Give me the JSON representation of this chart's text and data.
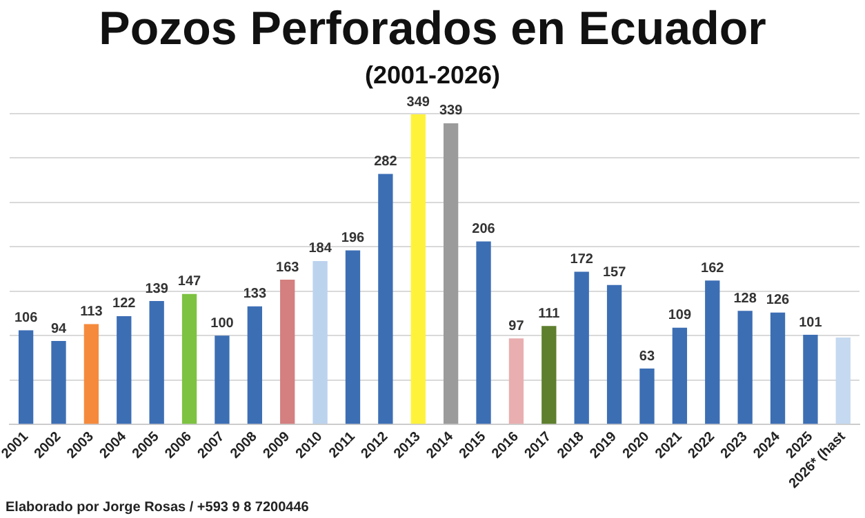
{
  "chart_data": {
    "type": "bar",
    "title": "Pozos Perforados en Ecuador",
    "subtitle": "(2001-2026)",
    "categories": [
      "2001",
      "2002",
      "2003",
      "2004",
      "2005",
      "2006",
      "2007",
      "2008",
      "2009",
      "2010",
      "2011",
      "2012",
      "2013",
      "2014",
      "2015",
      "2016",
      "2017",
      "2018",
      "2019",
      "2020",
      "2021",
      "2022",
      "2023",
      "2024",
      "2025",
      "2026* (hast"
    ],
    "values": [
      106,
      94,
      113,
      122,
      139,
      147,
      100,
      133,
      163,
      184,
      196,
      282,
      349,
      339,
      206,
      97,
      111,
      172,
      157,
      63,
      109,
      162,
      128,
      126,
      101,
      98
    ],
    "colors": [
      "#3c6eb4",
      "#3c6eb4",
      "#f58a3c",
      "#3c6eb4",
      "#3c6eb4",
      "#7dc241",
      "#3c6eb4",
      "#3c6eb4",
      "#d47f80",
      "#bcd3ee",
      "#3c6eb4",
      "#3c6eb4",
      "#fff23a",
      "#9b9b9b",
      "#3c6eb4",
      "#e9aeb0",
      "#5e7f2e",
      "#3c6eb4",
      "#3c6eb4",
      "#3c6eb4",
      "#3c6eb4",
      "#3c6eb4",
      "#3c6eb4",
      "#3c6eb4",
      "#3c6eb4",
      "#c5d9f1"
    ],
    "value_labels": [
      "106",
      "94",
      "113",
      "122",
      "139",
      "147",
      "100",
      "133",
      "163",
      "184",
      "196",
      "282",
      "349",
      "339",
      "206",
      "97",
      "111",
      "172",
      "157",
      "63",
      "109",
      "162",
      "128",
      "126",
      "101",
      null
    ],
    "ylim": [
      0,
      350
    ],
    "yticks": [
      {
        "value": 0,
        "label": null
      },
      {
        "value": 50,
        "label": null
      },
      {
        "value": 100,
        "label": null
      },
      {
        "value": 150,
        "label": null
      },
      {
        "value": 200,
        "label": null
      },
      {
        "value": 250,
        "label": null
      },
      {
        "value": 300,
        "label": null
      },
      {
        "value": 350,
        "label": null
      }
    ],
    "tick_labels": "x",
    "grid": "y",
    "legend": false,
    "annotations": [
      "Elaborado por Jorge Rosas / +593 9 8 7200446"
    ]
  }
}
